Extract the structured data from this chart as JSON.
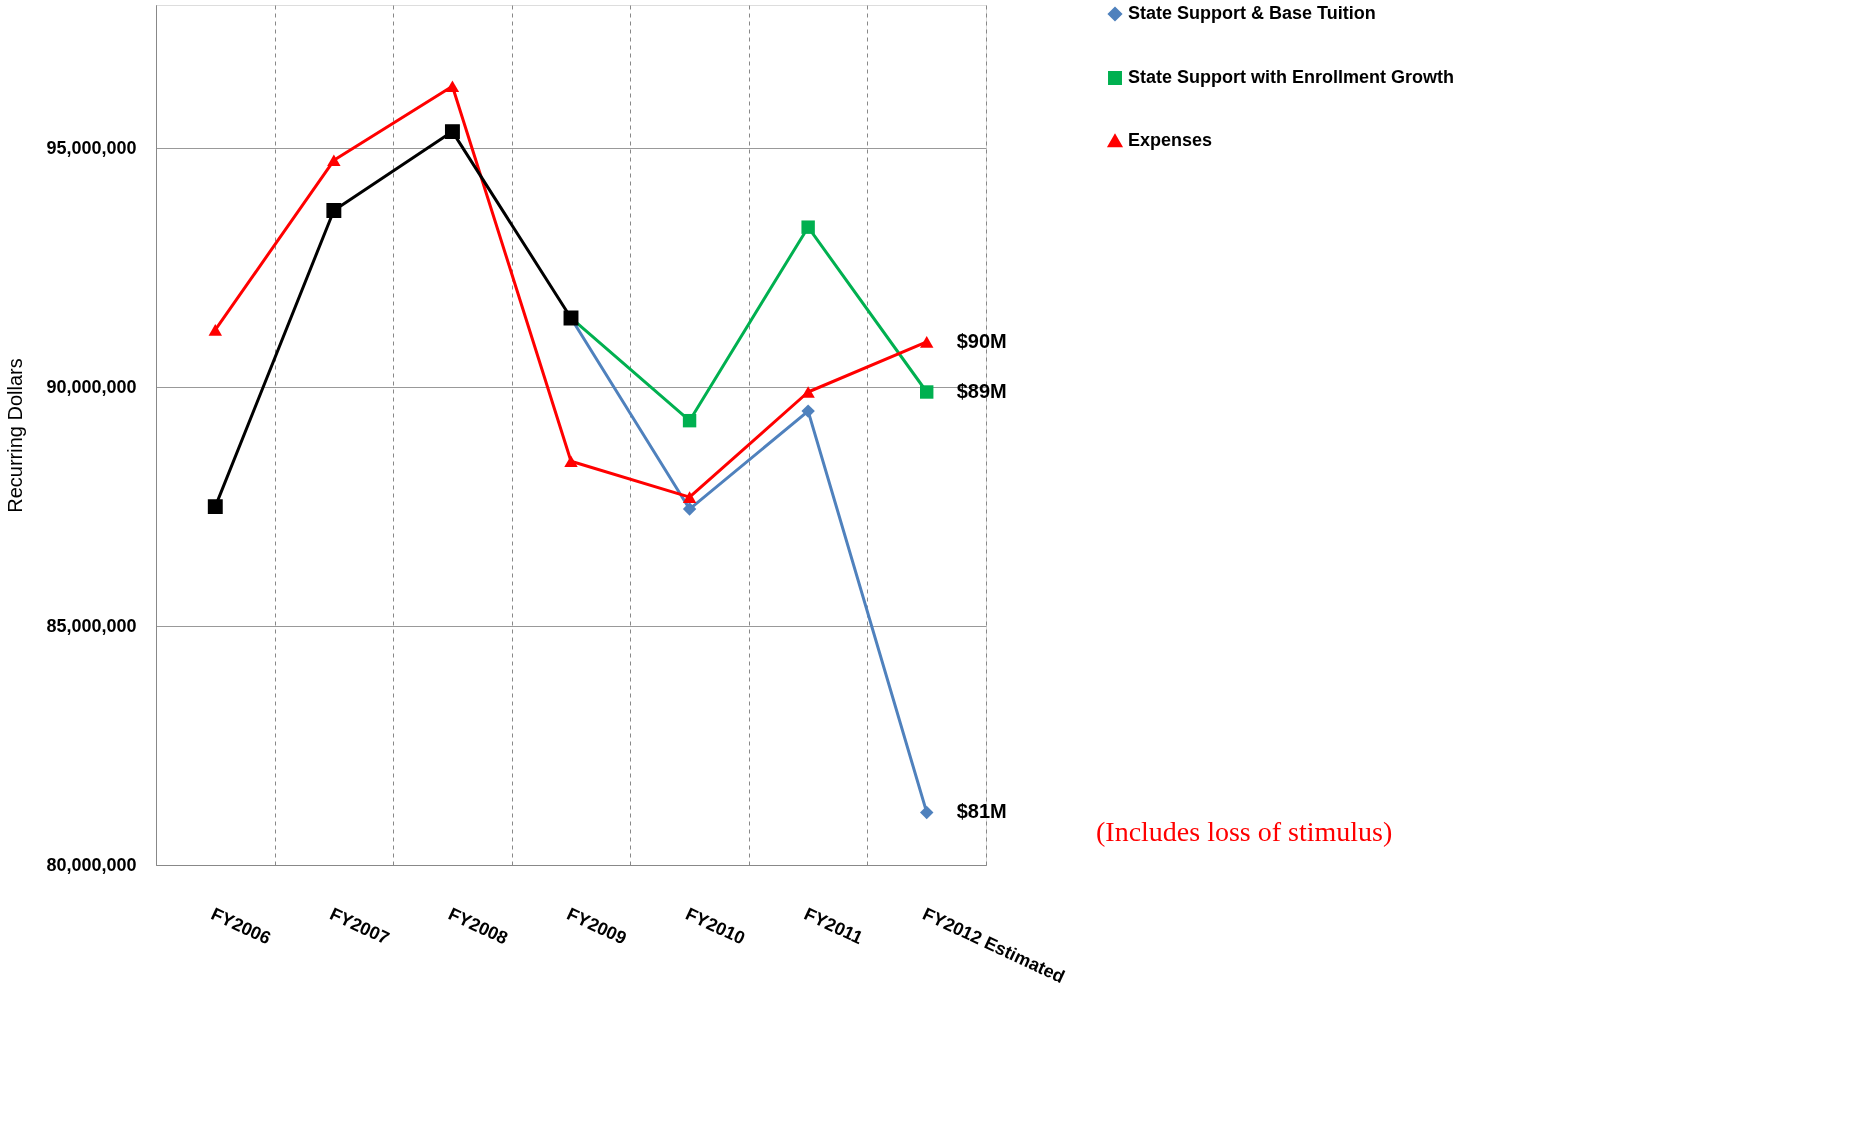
{
  "chart_data": {
    "type": "line",
    "ylabel": "Recurring Dollars",
    "categories": [
      "FY2006",
      "FY2007",
      "FY2008",
      "FY2009",
      "FY2010",
      "FY2011",
      "FY2012 Estimated"
    ],
    "series": [
      {
        "name": "State Support & Base Tuition",
        "color": "#4f81bd",
        "marker": "diamond",
        "values": [
          null,
          null,
          null,
          91450000,
          87450000,
          89500000,
          81100000
        ]
      },
      {
        "name": "State Support with Enrollment Growth",
        "color": "#00b050",
        "marker": "square",
        "values": [
          null,
          null,
          null,
          91450000,
          89300000,
          93350000,
          89900000
        ]
      },
      {
        "name": "Expenses",
        "color": "#ff0000",
        "marker": "triangle",
        "values": [
          91200000,
          94750000,
          96300000,
          88450000,
          87700000,
          89900000,
          90950000
        ]
      },
      {
        "color": "#000000",
        "marker": "square",
        "values": [
          87500000,
          93700000,
          95350000,
          91450000,
          null,
          null,
          null
        ]
      }
    ],
    "ylim": [
      80000000,
      98000000
    ],
    "yticks": [
      {
        "value": 80000000,
        "label": "80,000,000"
      },
      {
        "value": 85000000,
        "label": "85,000,000"
      },
      {
        "value": 90000000,
        "label": "90,000,000"
      },
      {
        "value": 95000000,
        "label": "95,000,000"
      }
    ],
    "grid": true,
    "legend": "right",
    "line_style": "solid",
    "annotations": [
      {
        "text": "$90M",
        "x": "FY2012 Estimated",
        "y": 90950000
      },
      {
        "text": "$89M",
        "x": "FY2012 Estimated",
        "y": 89900000
      },
      {
        "text": "$81M",
        "x": "FY2012 Estimated",
        "y": 81100000
      },
      "(Includes loss of stimulus)"
    ]
  }
}
